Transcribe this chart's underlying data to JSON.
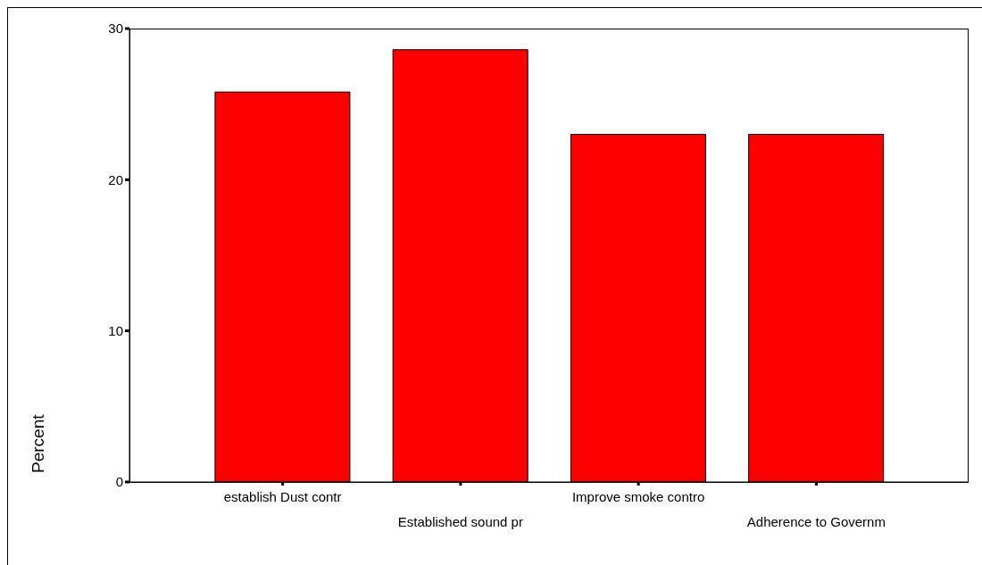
{
  "chart_data": {
    "type": "bar",
    "ylabel": "Percent",
    "categories": [
      "establish Dust contr",
      "Established sound pr",
      "Improve smoke contro",
      "Adherence to Governm"
    ],
    "values": [
      25.8,
      28.6,
      23.0,
      23.0
    ],
    "color": "#ff0000",
    "ylim": [
      0,
      30
    ],
    "yticks": [
      0,
      10,
      20,
      30
    ],
    "grid": false
  }
}
